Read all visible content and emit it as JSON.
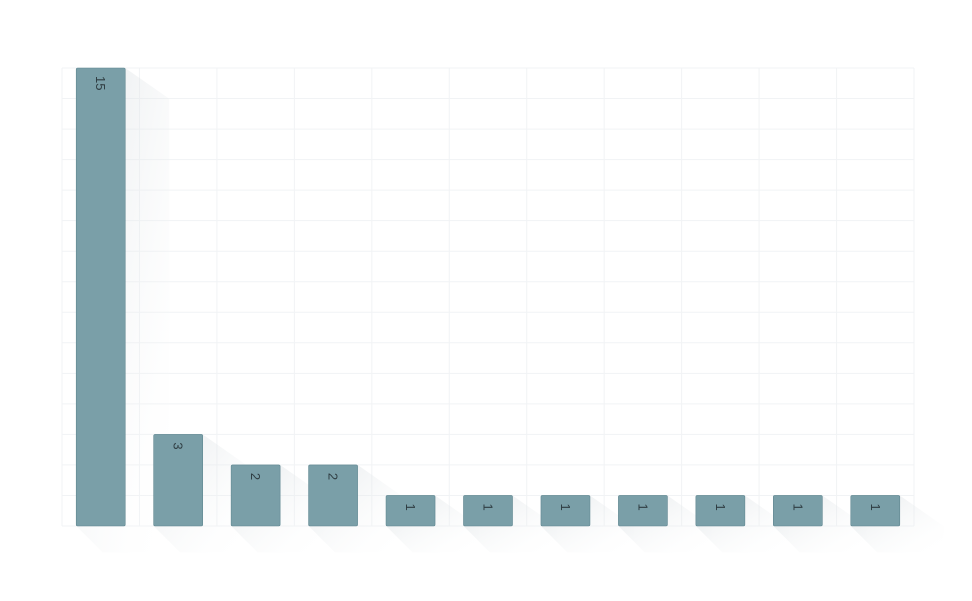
{
  "chart_data": {
    "type": "bar",
    "categories": [
      "",
      "",
      "",
      "",
      "",
      "",
      "",
      "",
      "",
      "",
      ""
    ],
    "values": [
      15,
      3,
      2,
      2,
      1,
      1,
      1,
      1,
      1,
      1,
      1
    ],
    "title": "",
    "xlabel": "",
    "ylabel": "",
    "ylim": [
      0,
      15
    ],
    "grid": true,
    "legend": "none",
    "colors": {
      "bar": "#7a9fa8",
      "bar_border": "#5f8690",
      "label": "#2f3d42"
    }
  }
}
